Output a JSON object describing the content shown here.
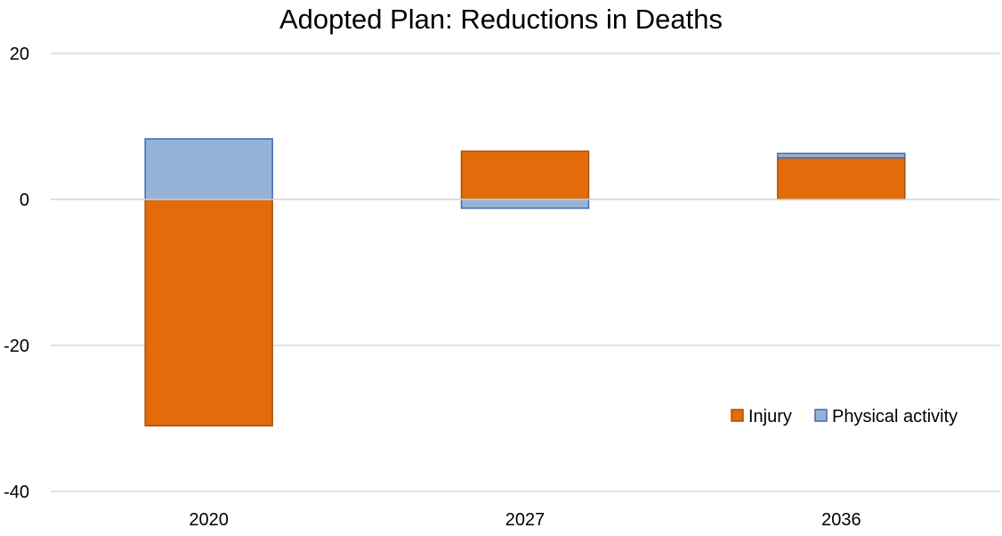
{
  "chart_data": {
    "type": "bar",
    "stacked": true,
    "title": "Adopted Plan: Reductions in Deaths",
    "xlabel": "",
    "ylabel": "",
    "categories": [
      "2020",
      "2027",
      "2036"
    ],
    "series": [
      {
        "name": "Injury",
        "values": [
          -31,
          6.6,
          5.7
        ],
        "color": "#E36C0A",
        "border": "#A65008"
      },
      {
        "name": "Physical activity",
        "values": [
          8.3,
          -1.2,
          0.6
        ],
        "color": "#95B3D7",
        "border": "#3E6AAA"
      }
    ],
    "ylim": [
      -40,
      20
    ],
    "yticks": [
      20,
      0,
      -20,
      -40
    ],
    "ytick_labels": [
      "20",
      "0",
      "-20",
      "-40"
    ],
    "grid": true,
    "legend": "bottom-right"
  }
}
